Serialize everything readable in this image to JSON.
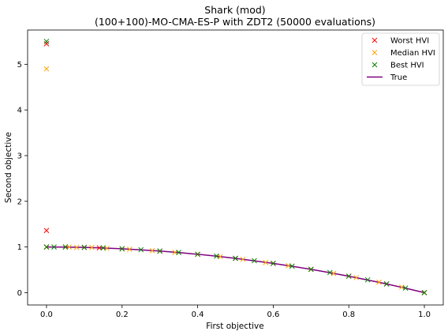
{
  "chart_data": {
    "type": "scatter",
    "title": "Shark (mod)",
    "subtitle": "(100+100)-MO-CMA-ES-P with ZDT2 (50000 evaluations)",
    "xlabel": "First objective",
    "ylabel": "Second objective",
    "xlim": [
      -0.05,
      1.05
    ],
    "ylim": [
      -0.27,
      5.75
    ],
    "xticks": [
      "0.0",
      "0.2",
      "0.4",
      "0.6",
      "0.8",
      "1.0"
    ],
    "xtick_values": [
      0,
      0.2,
      0.4,
      0.6,
      0.8,
      1.0
    ],
    "yticks": [
      "0",
      "1",
      "2",
      "3",
      "4",
      "5"
    ],
    "ytick_values": [
      0,
      1,
      2,
      3,
      4,
      5
    ],
    "grid": false,
    "legend_position": "top-right",
    "series": [
      {
        "name": "Worst HVI",
        "marker": "x",
        "color": "#ff0000",
        "x": [
          0.0,
          0.0,
          0.0,
          0.05,
          0.1,
          0.14,
          0.2,
          0.3,
          0.4,
          0.5,
          0.6,
          0.7,
          0.8,
          0.9,
          1.0
        ],
        "y": [
          5.45,
          1.36,
          1.0,
          1.0,
          0.99,
          0.98,
          0.96,
          0.91,
          0.84,
          0.75,
          0.64,
          0.51,
          0.36,
          0.19,
          0.0
        ]
      },
      {
        "name": "Median HVI",
        "marker": "x",
        "color": "#ffa500",
        "x": [
          0.0,
          0.0,
          0.06,
          0.08,
          0.12,
          0.16,
          0.22,
          0.28,
          0.34,
          0.4,
          0.46,
          0.52,
          0.58,
          0.64,
          0.7,
          0.76,
          0.82,
          0.88,
          0.94,
          1.0
        ],
        "y": [
          4.9,
          1.0,
          1.0,
          0.99,
          0.99,
          0.97,
          0.95,
          0.92,
          0.88,
          0.84,
          0.79,
          0.73,
          0.66,
          0.59,
          0.51,
          0.42,
          0.33,
          0.23,
          0.12,
          0.0
        ]
      },
      {
        "name": "Best HVI",
        "marker": "x",
        "color": "#008000",
        "x": [
          0.0,
          0.0,
          0.02,
          0.05,
          0.1,
          0.15,
          0.2,
          0.25,
          0.3,
          0.35,
          0.4,
          0.45,
          0.5,
          0.55,
          0.6,
          0.65,
          0.7,
          0.75,
          0.8,
          0.85,
          0.9,
          0.95,
          1.0
        ],
        "y": [
          5.5,
          1.0,
          1.0,
          1.0,
          0.99,
          0.98,
          0.96,
          0.94,
          0.91,
          0.88,
          0.84,
          0.8,
          0.75,
          0.7,
          0.64,
          0.58,
          0.51,
          0.44,
          0.36,
          0.28,
          0.19,
          0.1,
          0.0
        ]
      },
      {
        "name": "True",
        "marker": "line",
        "color": "#800080",
        "x": [
          0.0,
          0.05,
          0.1,
          0.15,
          0.2,
          0.25,
          0.3,
          0.35,
          0.4,
          0.45,
          0.5,
          0.55,
          0.6,
          0.65,
          0.7,
          0.75,
          0.8,
          0.85,
          0.9,
          0.95,
          1.0
        ],
        "y": [
          1.0,
          0.9975,
          0.99,
          0.9775,
          0.96,
          0.9375,
          0.91,
          0.8775,
          0.84,
          0.7975,
          0.75,
          0.6975,
          0.64,
          0.5775,
          0.51,
          0.4375,
          0.36,
          0.2775,
          0.19,
          0.0975,
          0.0
        ]
      }
    ]
  }
}
